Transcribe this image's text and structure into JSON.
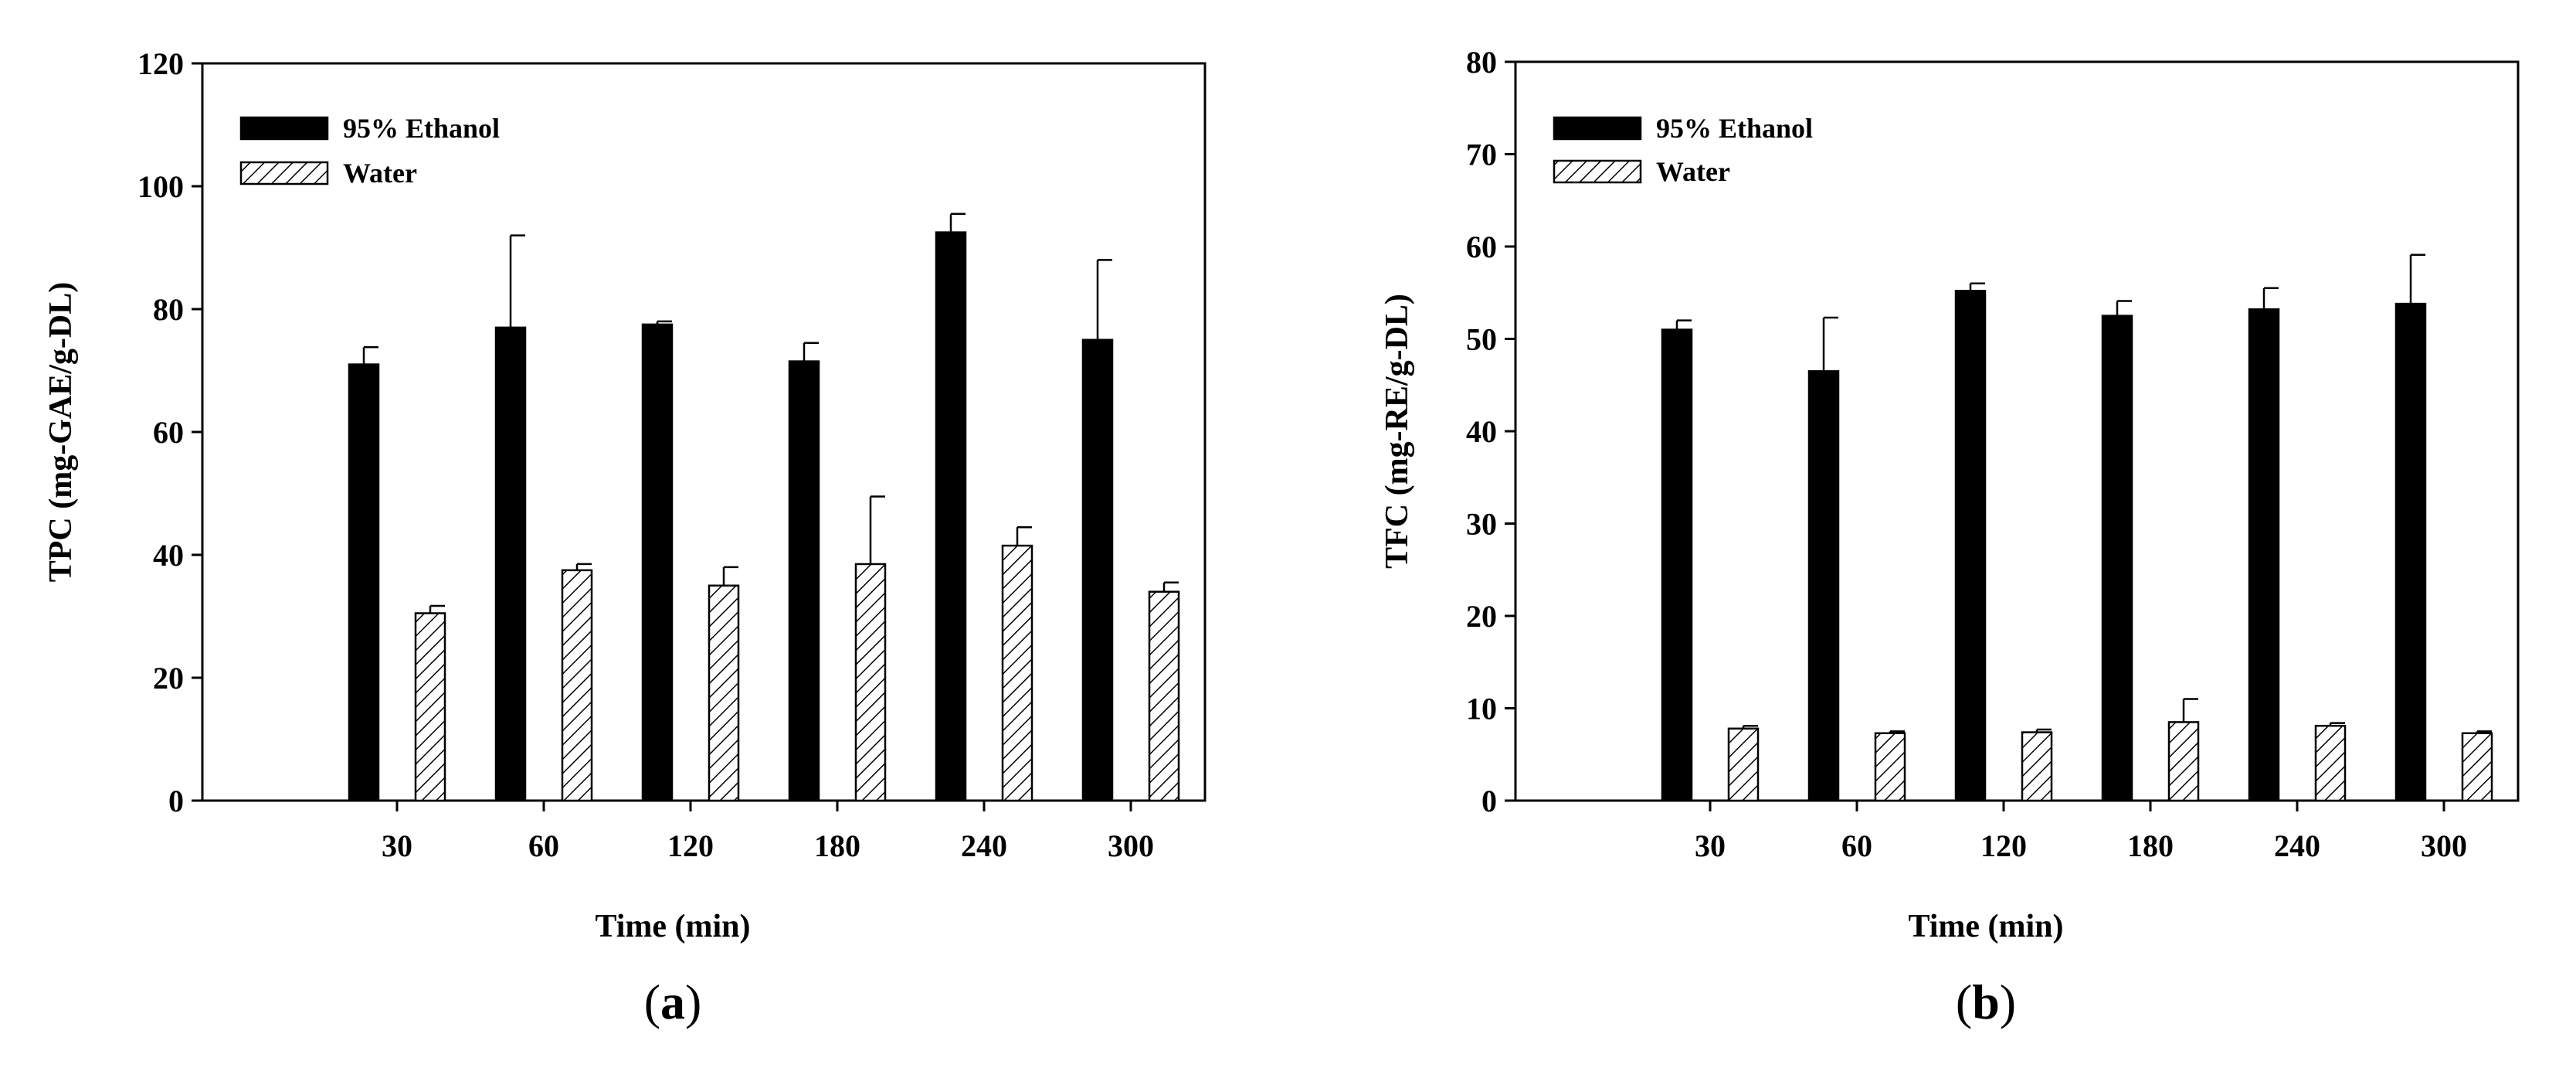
{
  "chart_data": [
    {
      "type": "bar",
      "panel": "a",
      "panel_open": "(",
      "panel_close": ")",
      "categories": [
        "30",
        "60",
        "120",
        "180",
        "240",
        "300"
      ],
      "xlabel": "Time (min)",
      "ylabel": "TPC (mg-GAE/g-DL)",
      "ylim": [
        0,
        120
      ],
      "yticks": [
        0,
        20,
        40,
        60,
        80,
        100,
        120
      ],
      "grid": false,
      "legend_position": "top-left",
      "series": [
        {
          "name": "95% Ethanol",
          "style": "solid",
          "color": "#000000",
          "values": [
            71,
            77,
            77.5,
            71.5,
            92.5,
            75
          ],
          "errors": [
            2.8,
            15,
            0.5,
            3,
            3,
            13
          ]
        },
        {
          "name": "Water",
          "style": "hatched",
          "color": "#000000",
          "values": [
            30.5,
            37.5,
            35,
            38.5,
            41.5,
            34
          ],
          "errors": [
            1.2,
            1,
            3,
            11,
            3,
            1.5
          ]
        }
      ]
    },
    {
      "type": "bar",
      "panel": "b",
      "panel_open": "(",
      "panel_close": ")",
      "categories": [
        "30",
        "60",
        "120",
        "180",
        "240",
        "300"
      ],
      "xlabel": "Time (min)",
      "ylabel": "TFC (mg-RE/g-DL)",
      "ylim": [
        0,
        80
      ],
      "yticks": [
        0,
        10,
        20,
        30,
        40,
        50,
        60,
        70,
        80
      ],
      "grid": false,
      "legend_position": "top-left",
      "series": [
        {
          "name": "95% Ethanol",
          "style": "solid",
          "color": "#000000",
          "values": [
            51,
            46.5,
            55.2,
            52.5,
            53.2,
            53.8
          ],
          "errors": [
            1,
            5.8,
            0.8,
            1.6,
            2.3,
            5.3
          ]
        },
        {
          "name": "Water",
          "style": "hatched",
          "color": "#000000",
          "values": [
            7.8,
            7.3,
            7.4,
            8.5,
            8.1,
            7.3
          ],
          "errors": [
            0.3,
            0.2,
            0.3,
            2.5,
            0.3,
            0.2
          ]
        }
      ]
    }
  ]
}
